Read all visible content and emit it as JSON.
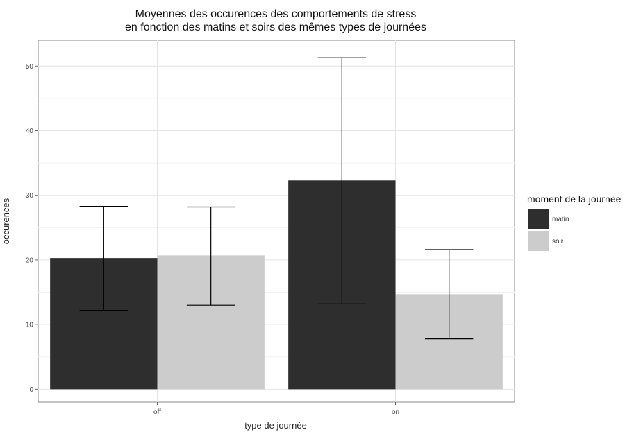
{
  "chart_data": {
    "type": "bar",
    "title_lines": [
      "Moyennes des occurences des comportements de stress",
      "en fonction des matins et soirs des mêmes types de journées"
    ],
    "xlabel": "type de journée",
    "ylabel": "occurences",
    "categories": [
      "off",
      "on"
    ],
    "ylim": [
      -2,
      54
    ],
    "yticks": [
      0,
      10,
      20,
      30,
      40,
      50
    ],
    "grid": true,
    "legend": {
      "title": "moment de la journée",
      "placement": "right"
    },
    "series": [
      {
        "name": "matin",
        "color": "#2e2e2e",
        "values": [
          20.3,
          32.3
        ],
        "error_low": [
          12.2,
          13.2
        ],
        "error_high": [
          28.3,
          51.3
        ]
      },
      {
        "name": "soir",
        "color": "#cccccc",
        "values": [
          20.7,
          14.7
        ],
        "error_low": [
          13.0,
          7.8
        ],
        "error_high": [
          28.2,
          21.6
        ]
      }
    ]
  }
}
